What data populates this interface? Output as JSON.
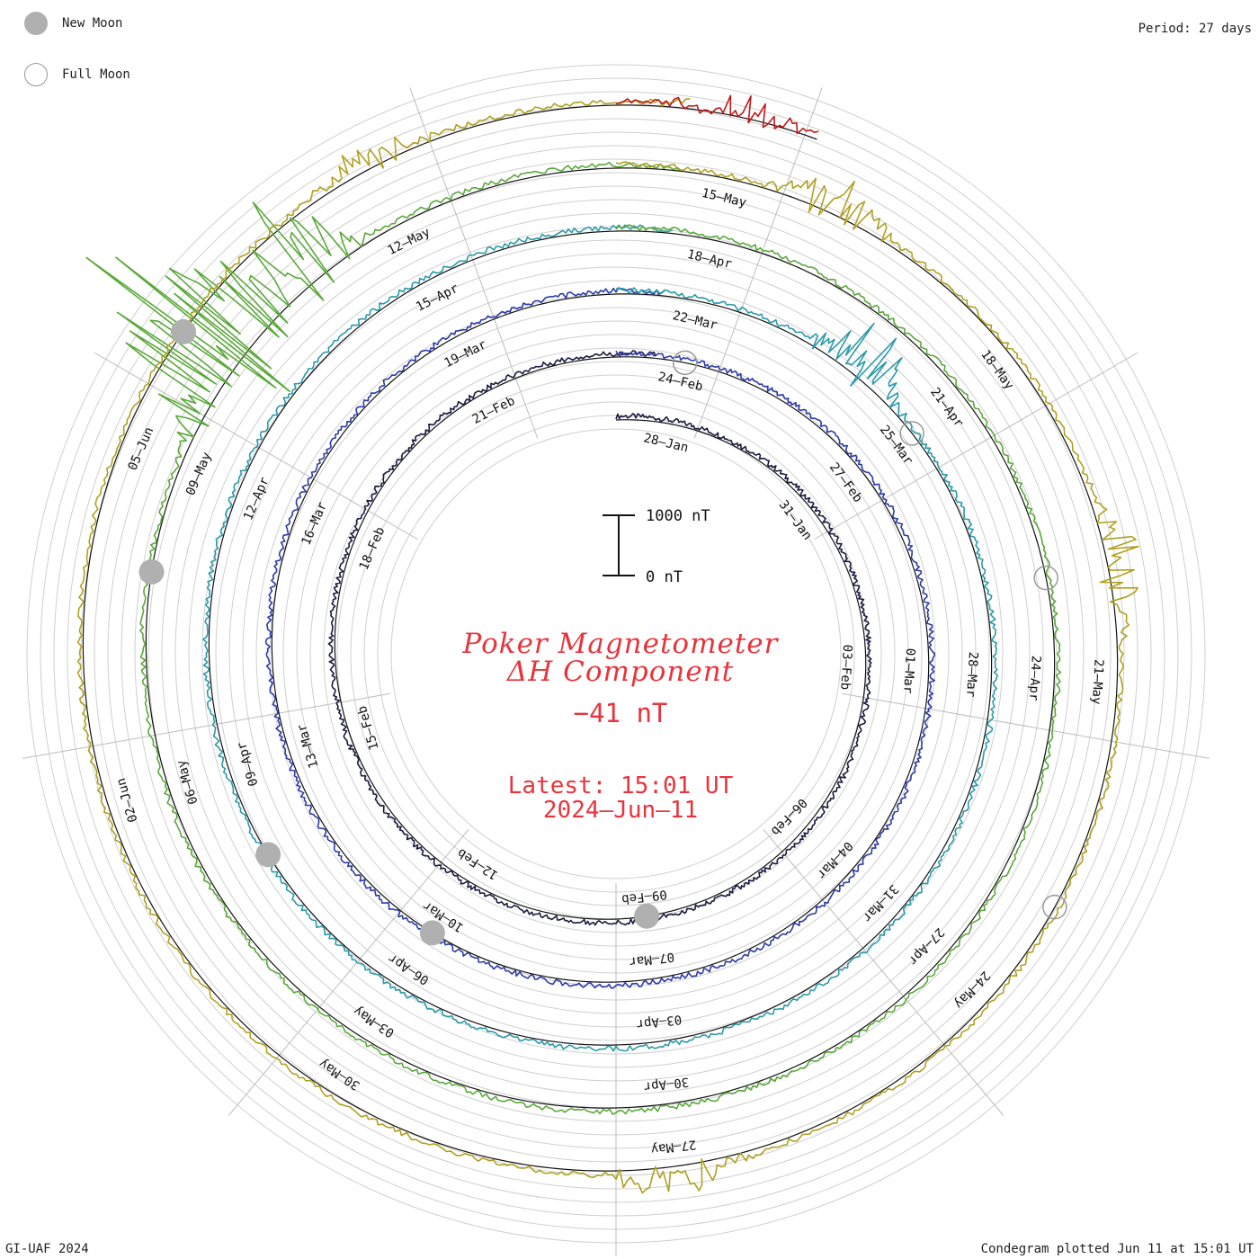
{
  "legend": {
    "new_moon_label": "New Moon",
    "full_moon_label": "Full Moon",
    "new_moon_color": "#b0b0b0",
    "full_moon_color": "#ffffff"
  },
  "period_label": "Period: 27 days",
  "credit": "GI-UAF 2024",
  "plotted_label": "Condegram plotted Jun 11 at 15:01 UT",
  "scale_bar": {
    "top_label": "1000 nT",
    "bottom_label": "0 nT"
  },
  "center": {
    "title_line1": "Poker Magnetometer",
    "title_line2": "ΔH Component",
    "current_value": "−41 nT",
    "latest_label": "Latest: 15:01 UT",
    "latest_date": "2024–Jun–11",
    "text_color": "#e8343c"
  },
  "chart_data": {
    "type": "line",
    "plot_style": "condegram spiral (polar time series)",
    "period_days": 27,
    "units": "nT",
    "scale_nT": [
      0,
      1000
    ],
    "date_labels": [
      "28–Jan",
      "31–Jan",
      "03–Feb",
      "06–Feb",
      "09–Feb",
      "12–Feb",
      "15–Feb",
      "18–Feb",
      "21–Feb",
      "24–Feb",
      "27–Feb",
      "01–Mar",
      "04–Mar",
      "07–Mar",
      "10–Mar",
      "13–Mar",
      "16–Mar",
      "19–Mar",
      "22–Mar",
      "25–Mar",
      "28–Mar",
      "31–Mar",
      "03–Apr",
      "06–Apr",
      "09–Apr",
      "12–Apr",
      "15–Apr",
      "18–Apr",
      "21–Apr",
      "24–Apr",
      "27–Apr",
      "30–Apr",
      "03–May",
      "06–May",
      "09–May",
      "12–May",
      "15–May",
      "18–May",
      "21–May",
      "24–May",
      "27–May",
      "30–May",
      "02–Jun",
      "05–Jun"
    ],
    "series": [
      {
        "color": "#1a1a40",
        "start": "2024-01-27",
        "end": "2024-02-23"
      },
      {
        "color": "#2b3aa8",
        "start": "2024-02-23",
        "end": "2024-03-21"
      },
      {
        "color": "#2a9aa8",
        "start": "2024-03-21",
        "end": "2024-04-17"
      },
      {
        "color": "#5aa83a",
        "start": "2024-04-17",
        "end": "2024-05-14"
      },
      {
        "color": "#b0a020",
        "start": "2024-05-14",
        "end": "2024-06-10"
      },
      {
        "color": "#c01818",
        "start": "2024-06-10",
        "end": "2024-06-11"
      }
    ],
    "disturbances": [
      {
        "date": "2024-03-24",
        "peak_nT": 900
      },
      {
        "date": "2024-05-10",
        "peak_nT": 2800
      },
      {
        "date": "2024-05-11",
        "peak_nT": 1500
      },
      {
        "date": "2024-05-16",
        "peak_nT": 500
      },
      {
        "date": "2024-05-20",
        "peak_nT": 500
      },
      {
        "date": "2024-05-27",
        "peak_nT": 400
      },
      {
        "date": "2024-06-08",
        "peak_nT": 350
      },
      {
        "date": "2024-06-11",
        "peak_nT": 300
      }
    ],
    "new_moons": [
      "2024-02-09",
      "2024-03-10",
      "2024-04-08",
      "2024-05-08",
      "2024-06-06"
    ],
    "full_moons": [
      "2024-02-24",
      "2024-03-25",
      "2024-04-23",
      "2024-05-23"
    ]
  }
}
